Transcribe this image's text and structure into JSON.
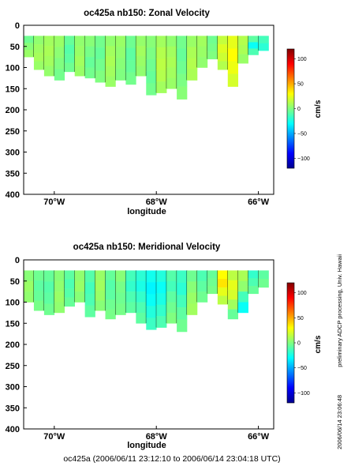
{
  "chart_data": [
    {
      "type": "heatmap",
      "title": "oc425a nb150: Zonal Velocity",
      "xlabel": "longitude",
      "ylabel": "",
      "xlim": [
        -70.6,
        -65.7
      ],
      "ylim": [
        400,
        0
      ],
      "x_ticks": [
        -70,
        -68,
        -66
      ],
      "x_tick_labels": [
        "70°W",
        "68°W",
        "66°W"
      ],
      "y_ticks": [
        0,
        50,
        100,
        150,
        200,
        250,
        300,
        350,
        400
      ],
      "y_tick_labels": [
        "0",
        "50",
        "100",
        "150",
        "200",
        "250",
        "300",
        "350",
        "400"
      ],
      "colorbar": {
        "label": "cm/s",
        "range": [
          -120,
          120
        ],
        "ticks": [
          -100,
          -50,
          0,
          50,
          100
        ],
        "tick_labels": [
          "−100",
          "−50",
          "0",
          "50",
          "100"
        ]
      },
      "depth_range_m": [
        25,
        175
      ],
      "profiles": [
        {
          "lon": -70.5,
          "max_depth": 75,
          "v": [
            -4,
            2,
            6
          ]
        },
        {
          "lon": -70.3,
          "max_depth": 105,
          "v": [
            4,
            7,
            9,
            6
          ]
        },
        {
          "lon": -70.1,
          "max_depth": 120,
          "v": [
            8,
            10,
            8,
            5
          ]
        },
        {
          "lon": -69.9,
          "max_depth": 130,
          "v": [
            6,
            3,
            0,
            -3
          ]
        },
        {
          "lon": -69.7,
          "max_depth": 110,
          "v": [
            -6,
            -10,
            -8,
            -4
          ]
        },
        {
          "lon": -69.5,
          "max_depth": 120,
          "v": [
            4,
            6,
            8,
            6
          ]
        },
        {
          "lon": -69.3,
          "max_depth": 125,
          "v": [
            2,
            -2,
            -6,
            -3
          ]
        },
        {
          "lon": -69.1,
          "max_depth": 135,
          "v": [
            -3,
            -6,
            -3,
            0
          ]
        },
        {
          "lon": -68.9,
          "max_depth": 145,
          "v": [
            4,
            8,
            10,
            8,
            6
          ]
        },
        {
          "lon": -68.7,
          "max_depth": 130,
          "v": [
            6,
            4,
            2,
            0
          ]
        },
        {
          "lon": -68.5,
          "max_depth": 140,
          "v": [
            -4,
            -8,
            -6,
            -3
          ]
        },
        {
          "lon": -68.3,
          "max_depth": 120,
          "v": [
            5,
            8,
            6,
            4
          ]
        },
        {
          "lon": -68.1,
          "max_depth": 165,
          "v": [
            2,
            -1,
            -4,
            -6,
            -3
          ]
        },
        {
          "lon": -67.9,
          "max_depth": 160,
          "v": [
            8,
            12,
            14,
            12,
            8
          ]
        },
        {
          "lon": -67.7,
          "max_depth": 150,
          "v": [
            4,
            8,
            10,
            8,
            6
          ]
        },
        {
          "lon": -67.5,
          "max_depth": 175,
          "v": [
            -3,
            -6,
            -4,
            -1,
            2
          ]
        },
        {
          "lon": -67.3,
          "max_depth": 130,
          "v": [
            6,
            10,
            12,
            10
          ]
        },
        {
          "lon": -67.1,
          "max_depth": 100,
          "v": [
            8,
            6,
            4
          ]
        },
        {
          "lon": -66.9,
          "max_depth": 80,
          "v": [
            -4,
            -2,
            0
          ]
        },
        {
          "lon": -66.7,
          "max_depth": 105,
          "v": [
            16,
            22,
            18,
            12
          ]
        },
        {
          "lon": -66.5,
          "max_depth": 145,
          "v": [
            24,
            30,
            26,
            20
          ]
        },
        {
          "lon": -66.3,
          "max_depth": 90,
          "v": [
            12,
            10,
            6
          ]
        },
        {
          "lon": -66.1,
          "max_depth": 70,
          "v": [
            -8,
            -28,
            -12
          ]
        },
        {
          "lon": -65.9,
          "max_depth": 60,
          "v": [
            -14,
            -20
          ]
        }
      ]
    },
    {
      "type": "heatmap",
      "title": "oc425a nb150: Meridional Velocity",
      "xlabel": "longitude",
      "ylabel": "",
      "xlim": [
        -70.6,
        -65.7
      ],
      "ylim": [
        400,
        0
      ],
      "x_ticks": [
        -70,
        -68,
        -66
      ],
      "x_tick_labels": [
        "70°W",
        "68°W",
        "66°W"
      ],
      "y_ticks": [
        0,
        50,
        100,
        150,
        200,
        250,
        300,
        350,
        400
      ],
      "y_tick_labels": [
        "0",
        "50",
        "100",
        "150",
        "200",
        "250",
        "300",
        "350",
        "400"
      ],
      "colorbar": {
        "label": "cm/s",
        "range": [
          -120,
          120
        ],
        "ticks": [
          -100,
          -50,
          0,
          50,
          100
        ],
        "tick_labels": [
          "−100",
          "−50",
          "0",
          "50",
          "100"
        ]
      },
      "depth_range_m": [
        25,
        175
      ],
      "profiles": [
        {
          "lon": -70.5,
          "max_depth": 100,
          "v": [
            2,
            6,
            4
          ]
        },
        {
          "lon": -70.3,
          "max_depth": 120,
          "v": [
            -4,
            -8,
            -6,
            -2
          ]
        },
        {
          "lon": -70.1,
          "max_depth": 130,
          "v": [
            -6,
            -10,
            -8,
            -4
          ]
        },
        {
          "lon": -69.9,
          "max_depth": 125,
          "v": [
            2,
            4,
            6,
            4
          ]
        },
        {
          "lon": -69.7,
          "max_depth": 110,
          "v": [
            -8,
            -12,
            -10,
            -6
          ]
        },
        {
          "lon": -69.5,
          "max_depth": 100,
          "v": [
            4,
            6,
            2
          ]
        },
        {
          "lon": -69.3,
          "max_depth": 135,
          "v": [
            -10,
            -14,
            -12,
            -8
          ]
        },
        {
          "lon": -69.1,
          "max_depth": 120,
          "v": [
            6,
            8,
            6,
            2
          ]
        },
        {
          "lon": -68.9,
          "max_depth": 140,
          "v": [
            -6,
            -10,
            -8,
            -4,
            -2
          ]
        },
        {
          "lon": -68.7,
          "max_depth": 130,
          "v": [
            2,
            -2,
            -4,
            -2
          ]
        },
        {
          "lon": -68.5,
          "max_depth": 125,
          "v": [
            -14,
            -18,
            -12,
            -8
          ]
        },
        {
          "lon": -68.3,
          "max_depth": 150,
          "v": [
            -20,
            -24,
            -18,
            -12,
            -8
          ]
        },
        {
          "lon": -68.1,
          "max_depth": 165,
          "v": [
            -26,
            -32,
            -28,
            -22,
            -16
          ]
        },
        {
          "lon": -67.9,
          "max_depth": 160,
          "v": [
            -22,
            -28,
            -24,
            -18,
            -12
          ]
        },
        {
          "lon": -67.7,
          "max_depth": 150,
          "v": [
            -10,
            -14,
            -8,
            -4,
            0
          ]
        },
        {
          "lon": -67.5,
          "max_depth": 170,
          "v": [
            -16,
            -20,
            -14,
            -8,
            -4
          ]
        },
        {
          "lon": -67.3,
          "max_depth": 130,
          "v": [
            -4,
            2,
            6,
            8
          ]
        },
        {
          "lon": -67.1,
          "max_depth": 100,
          "v": [
            -12,
            -8,
            -4
          ]
        },
        {
          "lon": -66.9,
          "max_depth": 80,
          "v": [
            -6,
            -4,
            -2
          ]
        },
        {
          "lon": -66.7,
          "max_depth": 105,
          "v": [
            30,
            36,
            24,
            14
          ]
        },
        {
          "lon": -66.5,
          "max_depth": 140,
          "v": [
            14,
            24,
            20,
            8,
            -6
          ]
        },
        {
          "lon": -66.3,
          "max_depth": 125,
          "v": [
            10,
            4,
            -14,
            -28
          ]
        },
        {
          "lon": -66.1,
          "max_depth": 80,
          "v": [
            -18,
            -12,
            -6
          ]
        },
        {
          "lon": -65.9,
          "max_depth": 65,
          "v": [
            -8,
            -4
          ]
        }
      ]
    }
  ],
  "side_note": "preliminary ADCP processing,  Univ. Hawaii",
  "stamp": "2006/06/14 23:06:48",
  "footer": "oc425a (2006/06/11 23:12:10 to 2006/06/14 23:04:18 UTC)"
}
